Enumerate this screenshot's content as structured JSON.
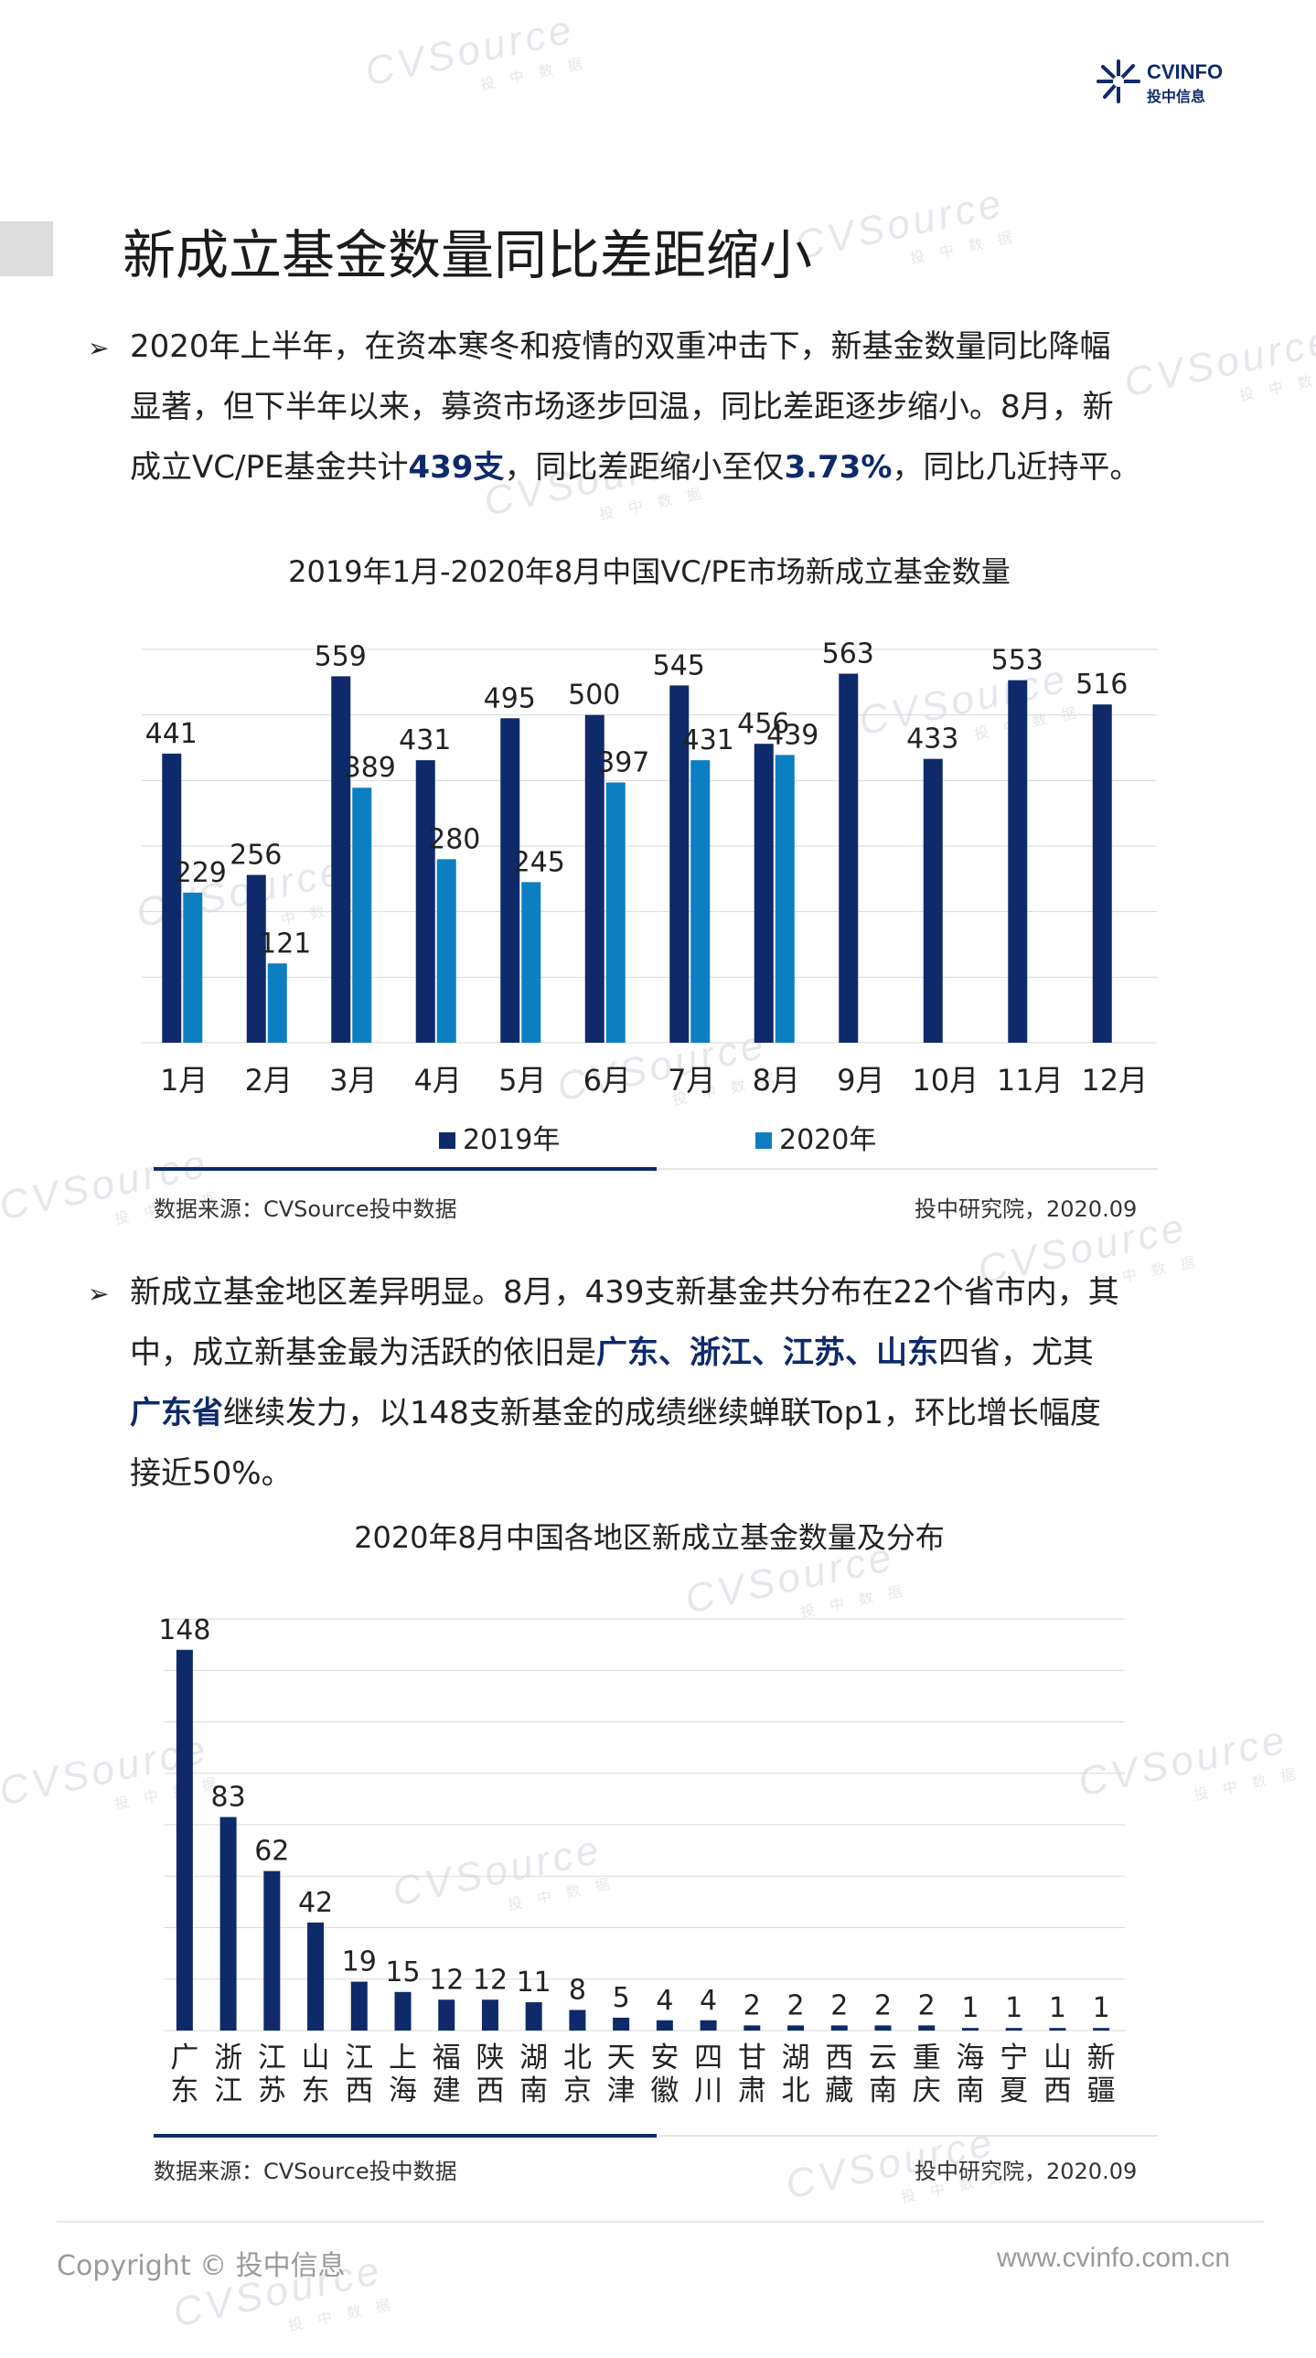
{
  "brand": {
    "logo_line1": "CVINFO",
    "logo_line2": "投中信息",
    "watermark_main": "CVSource",
    "watermark_sub": "投 中 数 据"
  },
  "page_title": "新成立基金数量同比差距缩小",
  "paragraph1": {
    "t1": "2020年上半年，在资本寒冬和疫情的双重冲击下，新基金数量同比降幅",
    "t2": "显著，但下半年以来，募资市场逐步回温，同比差距逐步缩小。8月，新",
    "t3a": "成立VC/PE基金共计",
    "t3b": "439支",
    "t3c": "，同比差距缩小至仅",
    "t3d": "3.73%",
    "t3e": "，同比几近持平。"
  },
  "chart1_source": "数据来源：CVSource投中数据",
  "chart1_note": "投中研究院，2020.09",
  "paragraph2": {
    "t1": "新成立基金地区差异明显。8月，439支新基金共分布在22个省市内，其",
    "t2a": "中，成立新基金最为活跃的依旧是",
    "t2b": "广东、浙江、江苏、山东",
    "t2c": "四省，尤其",
    "t3a": "广东省",
    "t3b": "继续发力，以148支新基金的成绩继续蝉联Top1，环比增长幅度",
    "t4": "接近50%。"
  },
  "chart2_source": "数据来源：CVSource投中数据",
  "chart2_note": "投中研究院，2020.09",
  "footer": {
    "copyright": "Copyright © 投中信息",
    "url": "www.cvinfo.com.cn"
  },
  "colors": {
    "dark_navy": "#0e2a6a",
    "light_blue": "#0b7fc1",
    "grid": "#d9d9d9"
  },
  "chart_data": [
    {
      "type": "bar",
      "title": "2019年1月-2020年8月中国VC/PE市场新成立基金数量",
      "categories": [
        "1月",
        "2月",
        "3月",
        "4月",
        "5月",
        "6月",
        "7月",
        "8月",
        "9月",
        "10月",
        "11月",
        "12月"
      ],
      "series": [
        {
          "name": "2019年",
          "color": "#0e2a6a",
          "values": [
            441,
            256,
            559,
            431,
            495,
            500,
            545,
            456,
            563,
            433,
            553,
            516
          ]
        },
        {
          "name": "2020年",
          "color": "#0b7fc1",
          "values": [
            229,
            121,
            389,
            280,
            245,
            397,
            431,
            439,
            null,
            null,
            null,
            null
          ]
        }
      ],
      "ylim": [
        0,
        600
      ],
      "grid": true,
      "legend": "bottom"
    },
    {
      "type": "bar",
      "title": "2020年8月中国各地区新成立基金数量及分布",
      "categories": [
        "广东",
        "浙江",
        "江苏",
        "山东",
        "江西",
        "上海",
        "福建",
        "陕西",
        "湖南",
        "北京",
        "天津",
        "安徽",
        "四川",
        "甘肃",
        "湖北",
        "西藏",
        "云南",
        "重庆",
        "海南",
        "宁夏",
        "山西",
        "新疆"
      ],
      "values": [
        148,
        83,
        62,
        42,
        19,
        15,
        12,
        12,
        11,
        8,
        5,
        4,
        4,
        2,
        2,
        2,
        2,
        2,
        1,
        1,
        1,
        1
      ],
      "color": "#0e2a6a",
      "ylim": [
        0,
        160
      ],
      "grid": true
    }
  ]
}
